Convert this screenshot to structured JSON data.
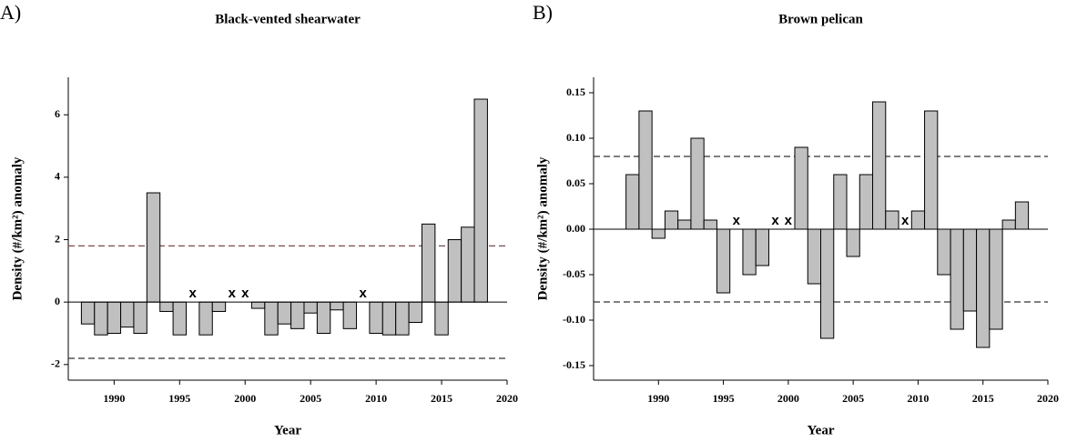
{
  "chart_data": [
    {
      "type": "bar",
      "panel_label": "A)",
      "title": "Black-vented shearwater",
      "x_label": "Year",
      "y_label": "Density (#/km²) anomaly",
      "missing_marker": "x",
      "x": [
        1988,
        1989,
        1990,
        1991,
        1992,
        1993,
        1994,
        1995,
        1996,
        1997,
        1998,
        1999,
        2000,
        2001,
        2002,
        2003,
        2004,
        2005,
        2006,
        2007,
        2008,
        2009,
        2010,
        2011,
        2012,
        2013,
        2014,
        2015,
        2016,
        2017,
        2018
      ],
      "values": [
        -0.7,
        -1.05,
        -1.0,
        -0.8,
        -1.0,
        3.5,
        -0.3,
        -1.05,
        null,
        -1.05,
        -0.3,
        null,
        null,
        -0.2,
        -1.05,
        -0.7,
        -0.85,
        -0.35,
        -1.0,
        -0.25,
        -0.85,
        null,
        -1.0,
        -1.05,
        -1.05,
        -0.65,
        2.5,
        -1.05,
        2.0,
        2.4,
        6.5
      ],
      "color": "#c0c0c0",
      "reference_lines": [
        {
          "value": 1.8,
          "color": "#7a4a4a"
        },
        {
          "value": -1.8,
          "color": "#333333"
        }
      ],
      "xlim": [
        1986.5,
        2020
      ],
      "xticks": [
        1990,
        1995,
        2000,
        2005,
        2010,
        2015,
        2020
      ],
      "ylim": [
        -2.5,
        7.2
      ],
      "yticks": [
        -2,
        0,
        2,
        4,
        6
      ]
    },
    {
      "type": "bar",
      "panel_label": "B)",
      "title": "Brown pelican",
      "x_label": "Year",
      "y_label": "Density (#/km²) anomaly",
      "missing_marker": "x",
      "x": [
        1988,
        1989,
        1990,
        1991,
        1992,
        1993,
        1994,
        1995,
        1996,
        1997,
        1998,
        1999,
        2000,
        2001,
        2002,
        2003,
        2004,
        2005,
        2006,
        2007,
        2008,
        2009,
        2010,
        2011,
        2012,
        2013,
        2014,
        2015,
        2016,
        2017,
        2018
      ],
      "values": [
        0.06,
        0.13,
        -0.01,
        0.02,
        0.01,
        0.1,
        0.01,
        -0.07,
        null,
        -0.05,
        -0.04,
        null,
        null,
        0.09,
        -0.06,
        -0.12,
        0.06,
        -0.03,
        0.06,
        0.14,
        0.02,
        null,
        0.02,
        0.13,
        -0.05,
        -0.11,
        -0.09,
        -0.13,
        -0.11,
        0.01,
        0.03
      ],
      "color": "#c0c0c0",
      "reference_lines": [
        {
          "value": 0.08,
          "color": "#333333"
        },
        {
          "value": -0.08,
          "color": "#333333"
        }
      ],
      "xlim": [
        1985,
        2020
      ],
      "xticks": [
        1990,
        1995,
        2000,
        2005,
        2010,
        2015,
        2020
      ],
      "ylim": [
        -0.166,
        0.167
      ],
      "yticks": [
        -0.15,
        {
          "value": -0.1,
          "label": "-0.10"
        },
        -0.05,
        {
          "value": 0,
          "label": "0.00"
        },
        0.05,
        {
          "value": 0.1,
          "label": "0.10"
        },
        0.15
      ]
    }
  ]
}
